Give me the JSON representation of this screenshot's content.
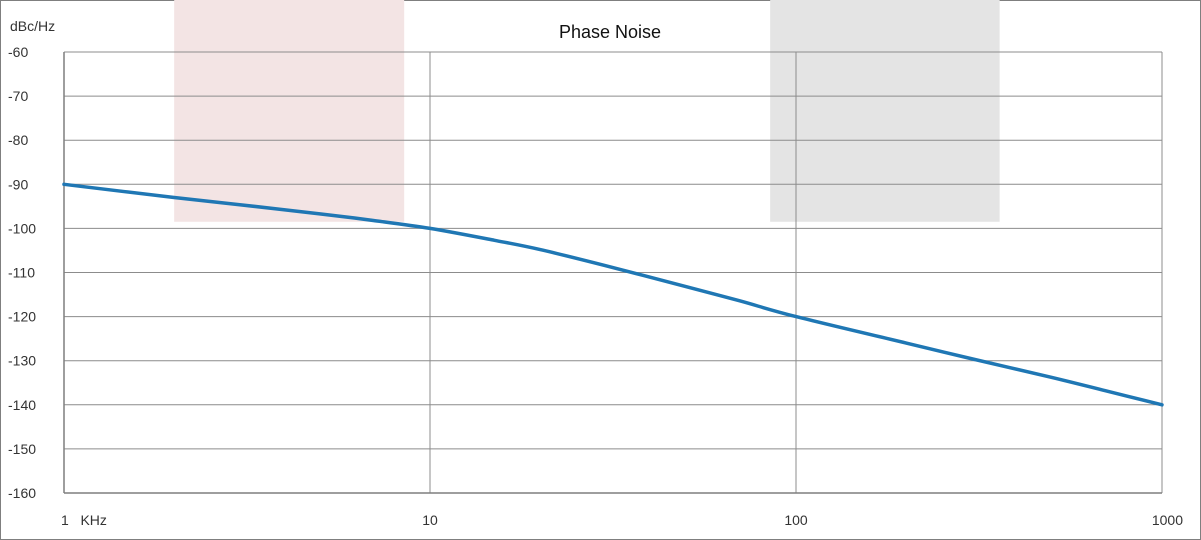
{
  "chart_data": {
    "type": "line",
    "title": "Phase Noise",
    "ylabel": "dBc/Hz",
    "xlabel": "",
    "x_scale": "log",
    "xlim": [
      1,
      1000
    ],
    "ylim": [
      -160,
      -60
    ],
    "x_ticks": [
      1,
      10,
      100,
      1000
    ],
    "x_tick_labels": [
      "1   KHz",
      "10",
      "100",
      "1000"
    ],
    "y_ticks": [
      -60,
      -70,
      -80,
      -90,
      -100,
      -110,
      -120,
      -130,
      -140,
      -150,
      -160
    ],
    "y_tick_labels": [
      "-60",
      "-70",
      "-80",
      "-90",
      "-100",
      "-110",
      "-120",
      "-130",
      "-140",
      "-150",
      "-160"
    ],
    "grid": true,
    "series": [
      {
        "color": "#1f77b4",
        "x": [
          1,
          2,
          3,
          5,
          7,
          10,
          15,
          20,
          30,
          50,
          70,
          100,
          200,
          300,
          500,
          700,
          1000
        ],
        "y": [
          -90,
          -93,
          -94.6,
          -96.7,
          -98.2,
          -100,
          -102.7,
          -104.8,
          -108.4,
          -113.2,
          -116.4,
          -120,
          -126,
          -129.5,
          -133.8,
          -136.8,
          -140
        ]
      }
    ],
    "shaded_bands": [
      {
        "x_range": [
          2,
          8.5
        ],
        "y_top": -60,
        "y_bottom": -98.5,
        "color": "#f3e4e4"
      },
      {
        "x_range": [
          85,
          360
        ],
        "y_top": -60,
        "y_bottom": -98.5,
        "color": "#e4e4e4"
      }
    ],
    "colors": {
      "grid": "#8c8c8c",
      "axis": "#7f7f7f",
      "frame": "#7f7f7f",
      "text": "#333333"
    }
  }
}
